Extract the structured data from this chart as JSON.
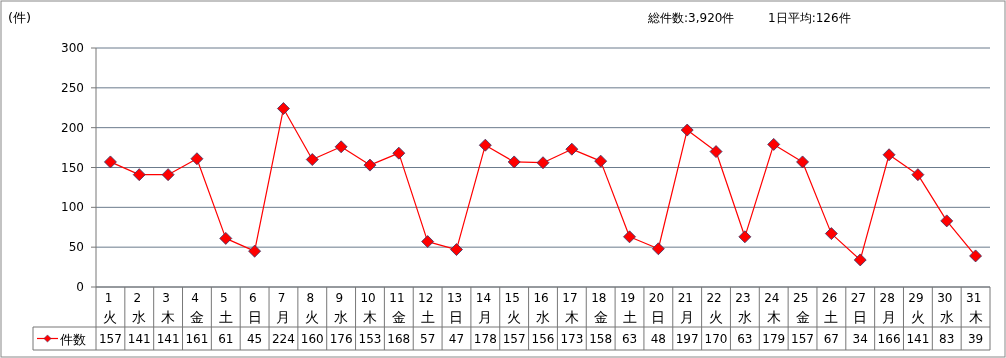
{
  "chart_data": {
    "type": "line",
    "ylabel": "(件)",
    "annotations": [
      "総件数:3,920件",
      "1日平均:126件"
    ],
    "categories": [
      "1 火",
      "2 水",
      "3 木",
      "4 金",
      "5 土",
      "6 日",
      "7 月",
      "8 火",
      "9 水",
      "10 木",
      "11 金",
      "12 土",
      "13 日",
      "14 月",
      "15 火",
      "16 水",
      "17 木",
      "18 金",
      "19 土",
      "20 日",
      "21 月",
      "22 火",
      "23 水",
      "24 木",
      "25 金",
      "26 土",
      "27 日",
      "28 月",
      "29 火",
      "30 水",
      "31 木"
    ],
    "series": [
      {
        "name": "件数",
        "color": "#ff0000",
        "values": [
          157,
          141,
          141,
          161,
          61,
          45,
          224,
          160,
          176,
          153,
          168,
          57,
          47,
          178,
          157,
          156,
          173,
          158,
          63,
          48,
          197,
          170,
          63,
          179,
          157,
          67,
          34,
          166,
          141,
          83,
          39
        ]
      }
    ],
    "ylim": [
      0,
      300
    ],
    "yticks": [
      0,
      50,
      100,
      150,
      200,
      250,
      300
    ],
    "grid": "y",
    "marker": "diamond",
    "line_style": "solid",
    "data_labels": true,
    "legend": "bottom left"
  }
}
